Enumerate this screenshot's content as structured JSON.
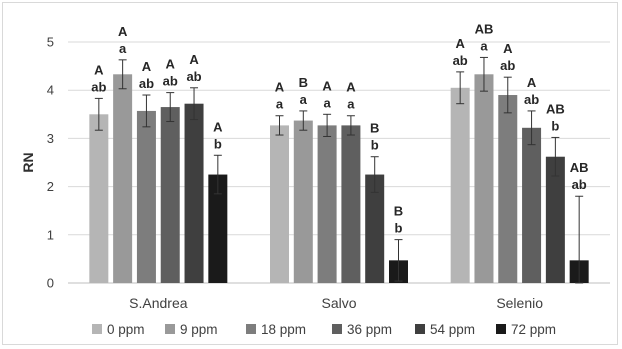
{
  "chart_data": {
    "type": "bar",
    "title": "",
    "xlabel": "",
    "ylabel": "RN",
    "ylim": [
      0,
      5
    ],
    "yticks": [
      0,
      1,
      2,
      3,
      4,
      5
    ],
    "grid": true,
    "legend_position": "bottom",
    "categories": [
      "S.Andrea",
      "Salvo",
      "Selenio"
    ],
    "series": [
      {
        "name": "0 ppm",
        "color": "#b5b5b5",
        "values": [
          3.5,
          3.27,
          4.05
        ],
        "errors": [
          0.33,
          0.2,
          0.33
        ],
        "upper_letters": [
          "A",
          "A",
          "A"
        ],
        "lower_letters": [
          "ab",
          "a",
          "ab"
        ]
      },
      {
        "name": "9 ppm",
        "color": "#999999",
        "values": [
          4.33,
          3.37,
          4.33
        ],
        "errors": [
          0.3,
          0.2,
          0.35
        ],
        "upper_letters": [
          "A",
          "B",
          "AB"
        ],
        "lower_letters": [
          "a",
          "a",
          "a"
        ]
      },
      {
        "name": "18 ppm",
        "color": "#7d7d7d",
        "values": [
          3.57,
          3.27,
          3.9
        ],
        "errors": [
          0.33,
          0.23,
          0.37
        ],
        "upper_letters": [
          "A",
          "A",
          "A"
        ],
        "lower_letters": [
          "ab",
          "a",
          "ab"
        ]
      },
      {
        "name": "36 ppm",
        "color": "#5f5f5f",
        "values": [
          3.65,
          3.27,
          3.22
        ],
        "errors": [
          0.3,
          0.2,
          0.35
        ],
        "upper_letters": [
          "A",
          "A",
          "A"
        ],
        "lower_letters": [
          "ab",
          "a",
          "ab"
        ]
      },
      {
        "name": "54 ppm",
        "color": "#3f3f3f",
        "values": [
          3.72,
          2.25,
          2.62
        ],
        "errors": [
          0.33,
          0.37,
          0.4
        ],
        "upper_letters": [
          "A",
          "B",
          "AB"
        ],
        "lower_letters": [
          "ab",
          "b",
          "b"
        ]
      },
      {
        "name": "72 ppm",
        "color": "#1a1a1a",
        "values": [
          2.25,
          0.47,
          0.47
        ],
        "errors": [
          0.4,
          0.43,
          1.33
        ],
        "upper_letters": [
          "A",
          "B",
          "AB"
        ],
        "lower_letters": [
          "b",
          "b",
          "ab"
        ]
      }
    ]
  }
}
